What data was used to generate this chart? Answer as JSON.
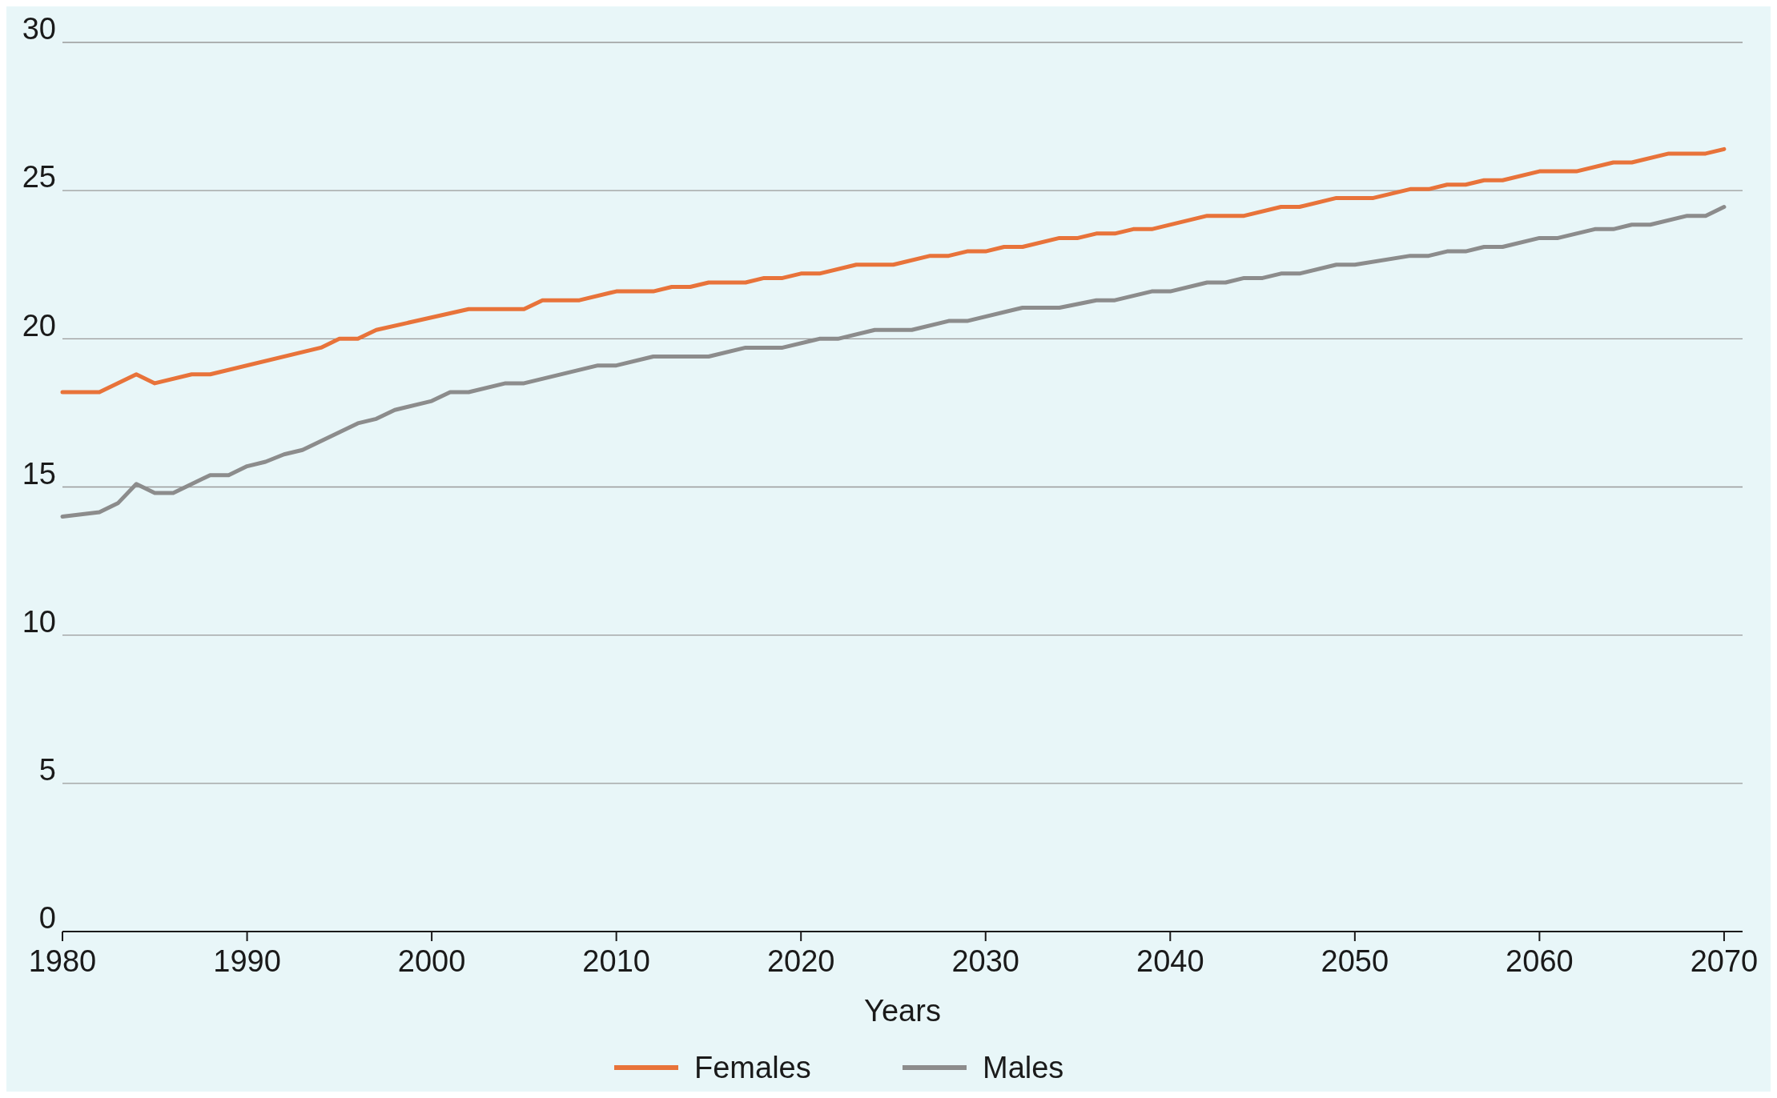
{
  "chart_data": {
    "type": "line",
    "xlabel": "Years",
    "xlim": [
      1980,
      2071
    ],
    "xticks": [
      1980,
      1990,
      2000,
      2010,
      2020,
      2030,
      2040,
      2050,
      2060,
      2070
    ],
    "ylim": [
      0,
      30
    ],
    "yticks": [
      0,
      5,
      10,
      15,
      20,
      25,
      30
    ],
    "grid": "y",
    "legend": "bottom",
    "marker": "none",
    "line_style": "solid",
    "series": [
      {
        "name": "Females",
        "color": "#e8733a",
        "x": [
          1980,
          1982,
          1984,
          1985,
          1987,
          1988,
          1994,
          1995,
          1996,
          1997,
          2002,
          2005,
          2006,
          2008,
          2010,
          2012,
          2013,
          2014,
          2015,
          2017,
          2018,
          2019,
          2020,
          2021,
          2023,
          2025,
          2027,
          2028,
          2029,
          2030,
          2031,
          2032,
          2034,
          2035,
          2036,
          2037,
          2038,
          2039,
          2042,
          2044,
          2046,
          2047,
          2049,
          2051,
          2053,
          2054,
          2055,
          2056,
          2057,
          2058,
          2060,
          2062,
          2064,
          2065,
          2067,
          2069,
          2070
        ],
        "values": [
          18.2,
          18.2,
          18.8,
          18.5,
          18.8,
          18.8,
          19.7,
          20.0,
          20.0,
          20.3,
          21.0,
          21.0,
          21.3,
          21.3,
          21.6,
          21.6,
          21.75,
          21.75,
          21.9,
          21.9,
          22.05,
          22.05,
          22.2,
          22.2,
          22.5,
          22.5,
          22.8,
          22.8,
          22.95,
          22.95,
          23.1,
          23.1,
          23.4,
          23.4,
          23.55,
          23.55,
          23.7,
          23.7,
          24.15,
          24.15,
          24.45,
          24.45,
          24.75,
          24.75,
          25.05,
          25.05,
          25.2,
          25.2,
          25.35,
          25.35,
          25.65,
          25.65,
          25.95,
          25.95,
          26.25,
          26.25,
          26.4
        ]
      },
      {
        "name": "Males",
        "color": "#8c8c8c",
        "x": [
          1980,
          1982,
          1983,
          1984,
          1985,
          1986,
          1988,
          1989,
          1990,
          1991,
          1992,
          1993,
          1996,
          1997,
          1998,
          2000,
          2001,
          2002,
          2004,
          2005,
          2009,
          2010,
          2012,
          2015,
          2017,
          2019,
          2021,
          2022,
          2024,
          2026,
          2028,
          2029,
          2032,
          2034,
          2036,
          2037,
          2039,
          2040,
          2042,
          2043,
          2044,
          2045,
          2046,
          2047,
          2049,
          2050,
          2053,
          2054,
          2055,
          2056,
          2057,
          2058,
          2060,
          2061,
          2063,
          2064,
          2065,
          2066,
          2068,
          2069,
          2070
        ],
        "values": [
          14.0,
          14.15,
          14.45,
          15.1,
          14.8,
          14.8,
          15.4,
          15.4,
          15.7,
          15.85,
          16.1,
          16.25,
          17.15,
          17.3,
          17.6,
          17.9,
          18.2,
          18.2,
          18.5,
          18.5,
          19.1,
          19.1,
          19.4,
          19.4,
          19.7,
          19.7,
          20.0,
          20.0,
          20.3,
          20.3,
          20.6,
          20.6,
          21.05,
          21.05,
          21.3,
          21.3,
          21.6,
          21.6,
          21.9,
          21.9,
          22.05,
          22.05,
          22.2,
          22.2,
          22.5,
          22.5,
          22.8,
          22.8,
          22.95,
          22.95,
          23.1,
          23.1,
          23.4,
          23.4,
          23.7,
          23.7,
          23.85,
          23.85,
          24.15,
          24.15,
          24.45
        ]
      }
    ]
  }
}
